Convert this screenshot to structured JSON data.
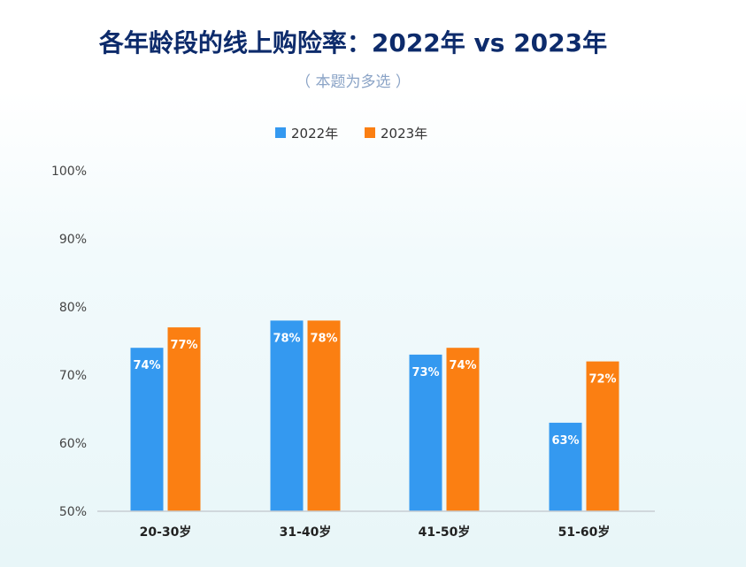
{
  "chart_data": {
    "type": "bar",
    "title": "各年龄段的线上购险率：2022年 vs 2023年",
    "subtitle": "（ 本题为多选 ）",
    "categories": [
      "20-30岁",
      "31-40岁",
      "41-50岁",
      "51-60岁"
    ],
    "series": [
      {
        "name": "2022年",
        "color": "#3499f0",
        "values": [
          74,
          78,
          73,
          63
        ],
        "labels": [
          "74%",
          "78%",
          "73%",
          "63%"
        ]
      },
      {
        "name": "2023年",
        "color": "#fb7f12",
        "values": [
          77,
          78,
          74,
          72
        ],
        "labels": [
          "77%",
          "78%",
          "74%",
          "72%"
        ]
      }
    ],
    "ylim": [
      50,
      100
    ],
    "yticks": [
      50,
      60,
      70,
      80,
      90,
      100
    ],
    "ytick_labels": [
      "50%",
      "60%",
      "70%",
      "80%",
      "90%",
      "100%"
    ],
    "grid": false,
    "legend": "top-center"
  }
}
